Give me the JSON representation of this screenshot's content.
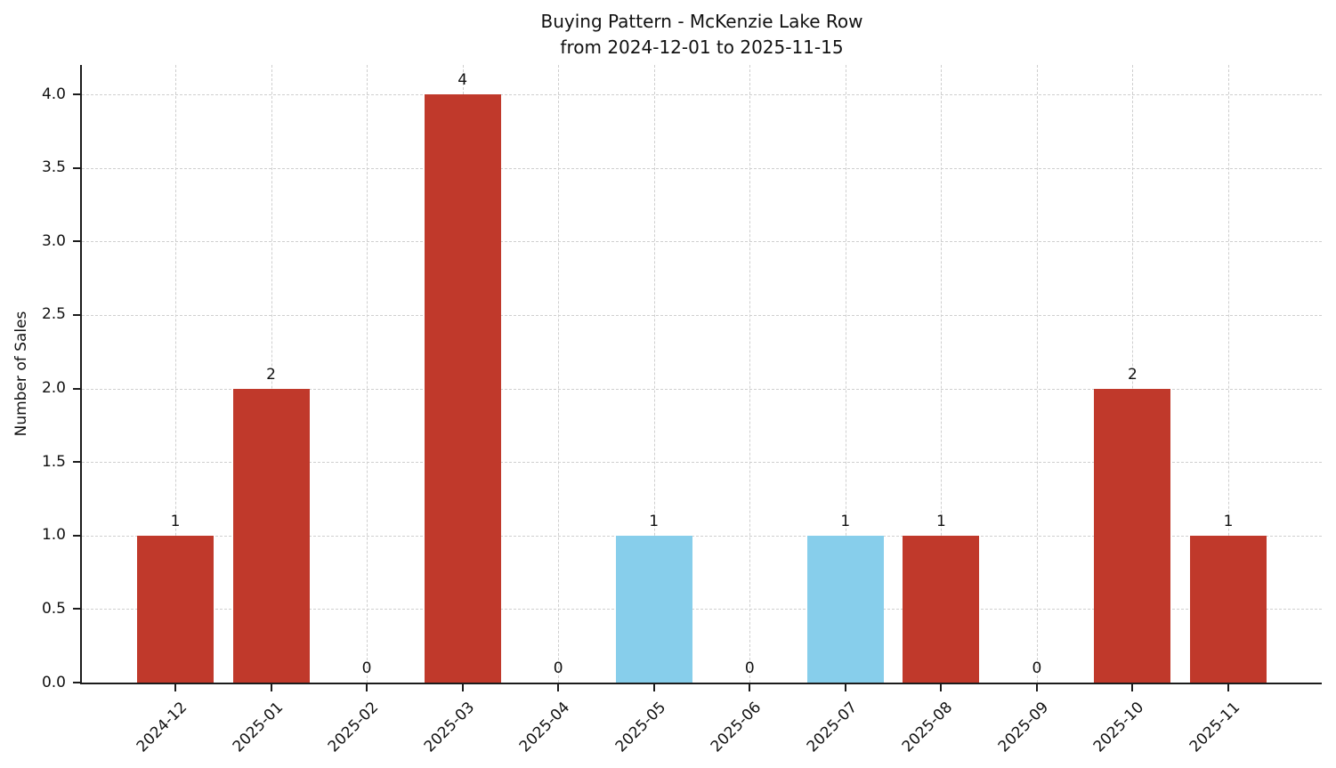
{
  "chart_data": {
    "type": "bar",
    "title": "Buying Pattern - McKenzie Lake Row",
    "subtitle": "from 2024-12-01 to 2025-11-15",
    "xlabel": "",
    "ylabel": "Number of Sales",
    "categories": [
      "2024-12",
      "2025-01",
      "2025-02",
      "2025-03",
      "2025-04",
      "2025-05",
      "2025-06",
      "2025-07",
      "2025-08",
      "2025-09",
      "2025-10",
      "2025-11"
    ],
    "values": [
      1,
      2,
      0,
      4,
      0,
      1,
      0,
      1,
      1,
      0,
      2,
      1
    ],
    "value_labels": [
      "1",
      "2",
      "0",
      "4",
      "0",
      "1",
      "0",
      "1",
      "1",
      "0",
      "2",
      "1"
    ],
    "bar_colors": [
      "#c0392b",
      "#c0392b",
      "#c0392b",
      "#c0392b",
      "#c0392b",
      "#87ceeb",
      "#c0392b",
      "#87ceeb",
      "#c0392b",
      "#c0392b",
      "#c0392b",
      "#c0392b"
    ],
    "yticks": [
      0,
      0.5,
      1,
      1.5,
      2,
      2.5,
      3,
      3.5,
      4
    ],
    "ytick_labels": [
      "0.0",
      "0.5",
      "1.0",
      "1.5",
      "2.0",
      "2.5",
      "3.0",
      "3.5",
      "4.0"
    ],
    "ylim": [
      0,
      4.2
    ],
    "grid": true,
    "grid_style": "dashed",
    "legend": false,
    "colors": {
      "bar_red": "#c0392b",
      "bar_blue": "#87ceeb",
      "grid": "#cfcfcf",
      "axis": "#1c1c1c",
      "text": "#111111",
      "background": "#ffffff"
    }
  }
}
